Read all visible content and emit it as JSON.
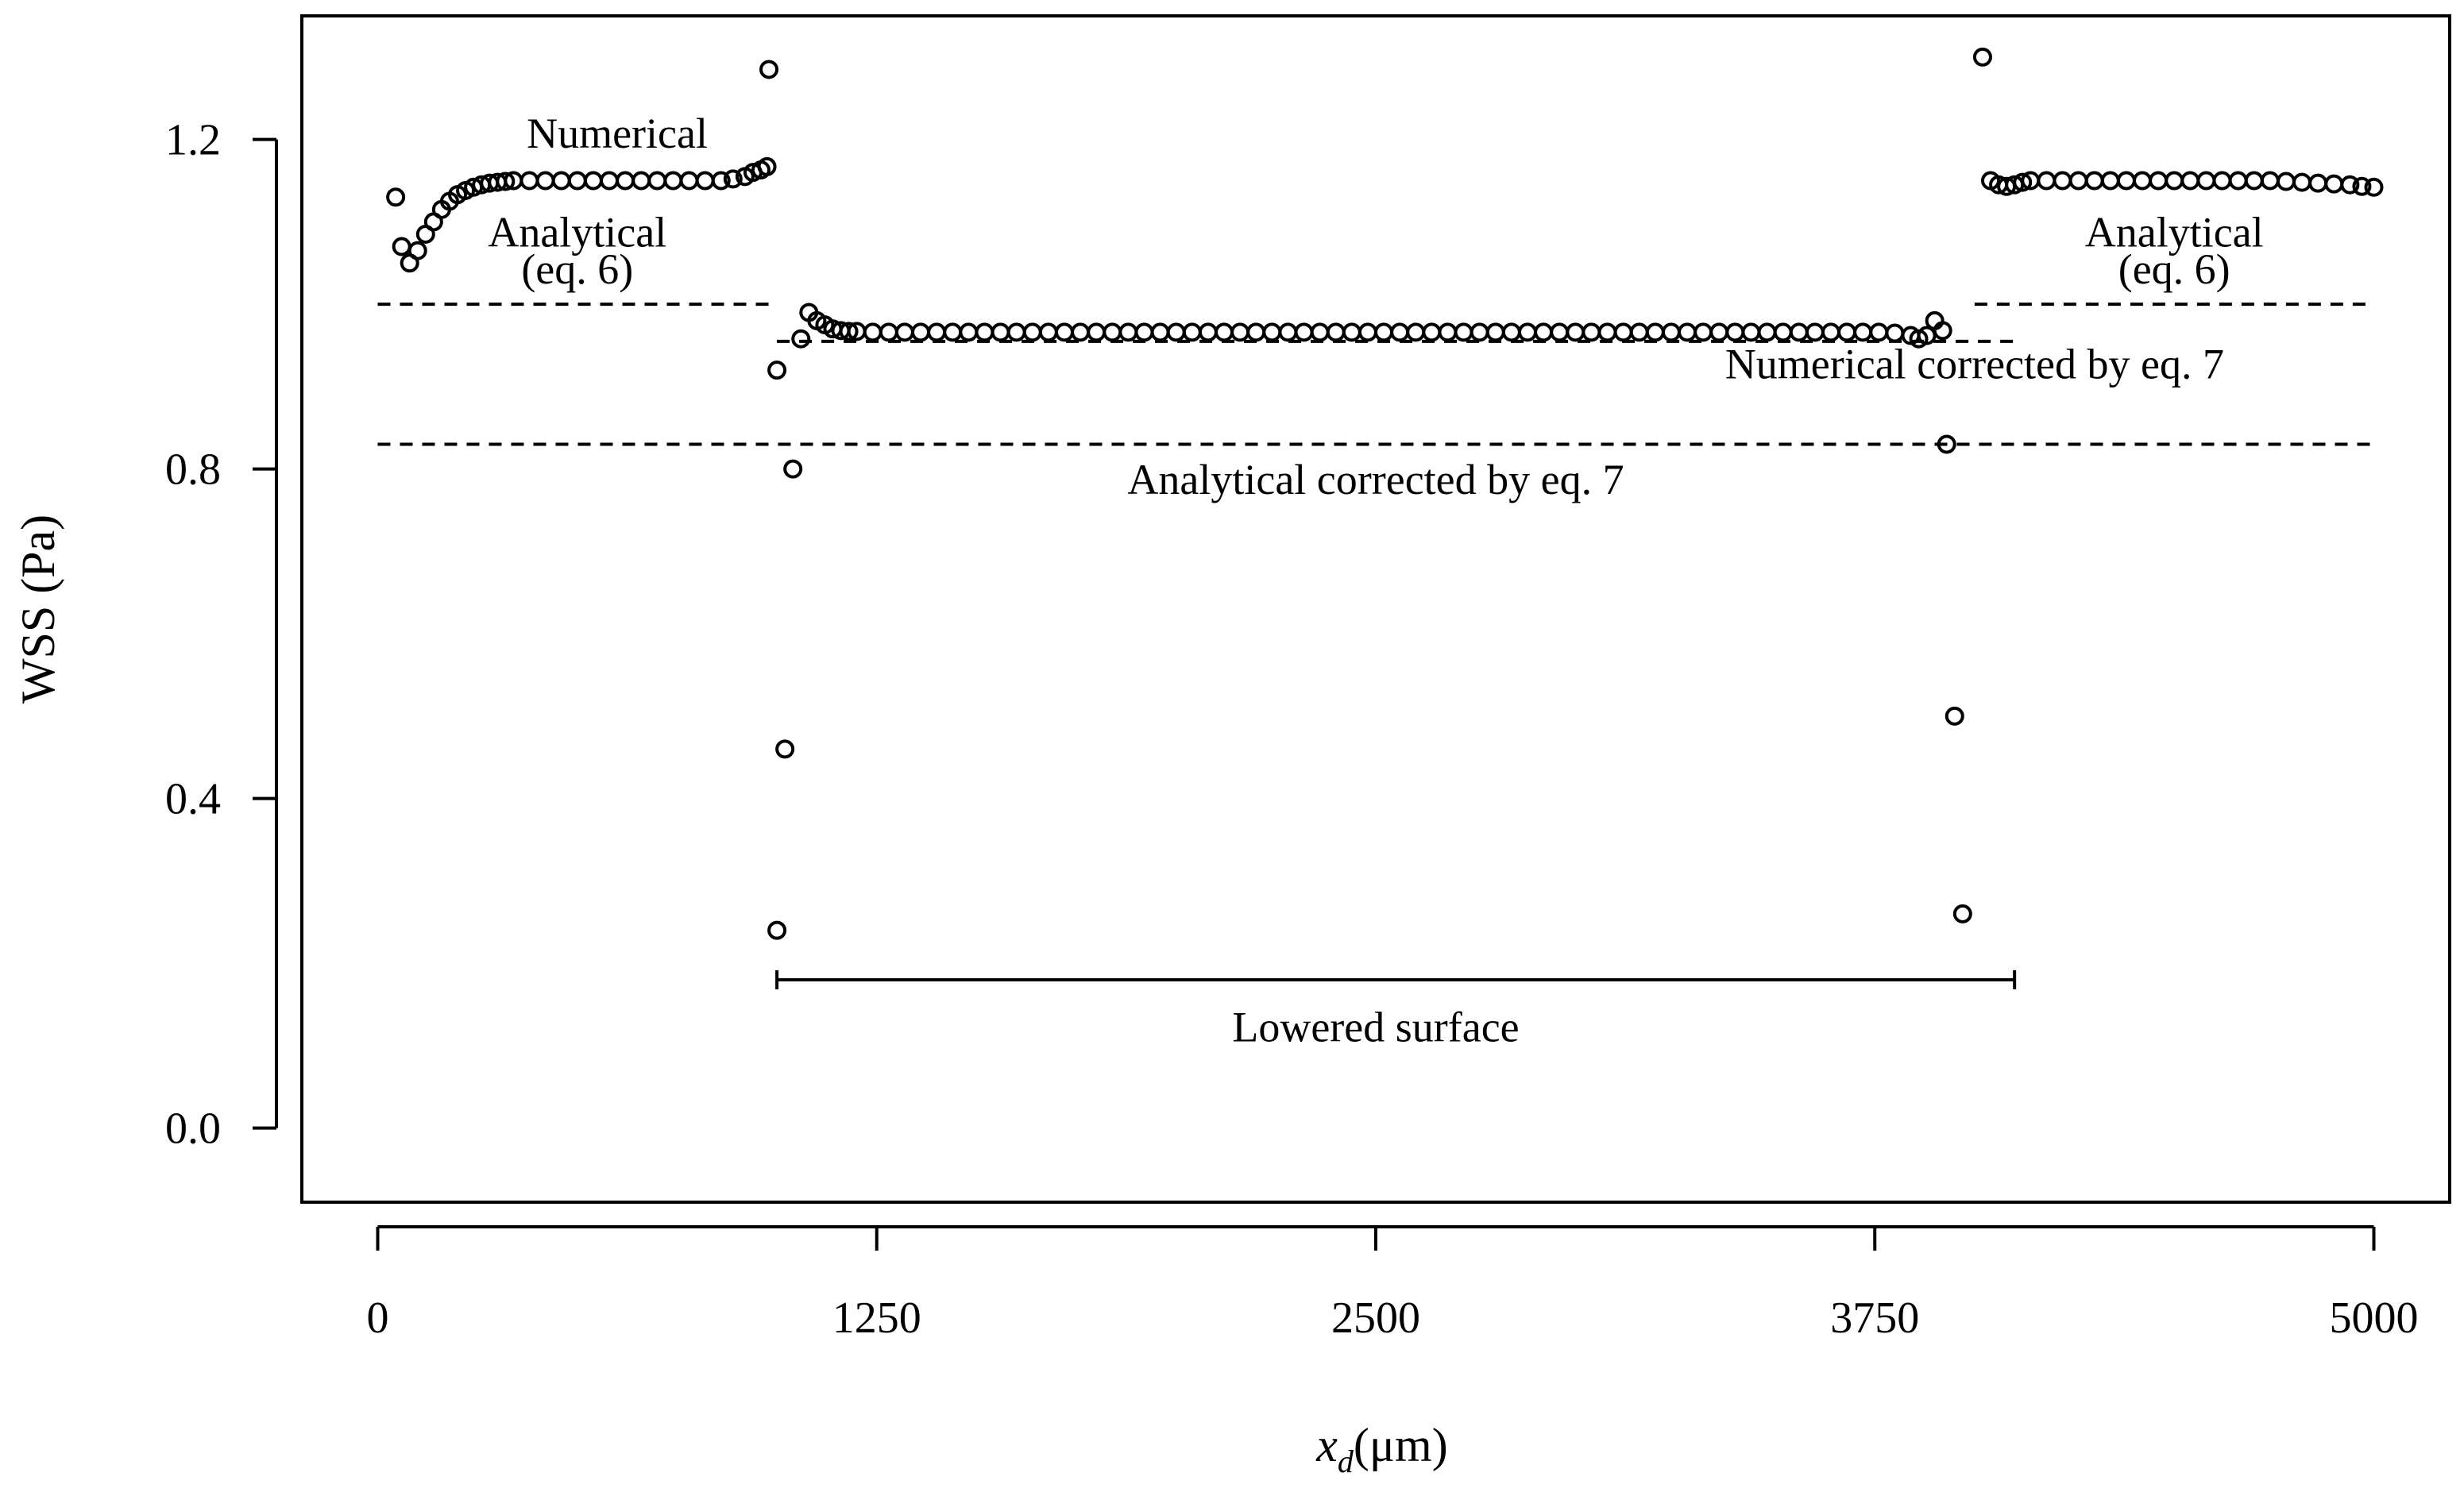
{
  "chart_data": {
    "type": "scatter",
    "title": "",
    "xlabel": {
      "var": "x",
      "sub": "d",
      "unit": "(μm)"
    },
    "ylabel": "WSS (Pa)",
    "xlim": [
      -190,
      5190
    ],
    "ylim": [
      -0.09,
      1.35
    ],
    "grid": false,
    "legend": "none",
    "x_ticks": [
      0,
      1250,
      2500,
      3750,
      5000
    ],
    "x_tick_labels": [
      "0",
      "1250",
      "2500",
      "3750",
      "5000"
    ],
    "y_ticks": [
      0.0,
      0.4,
      0.8,
      1.2
    ],
    "y_tick_labels": [
      "0.0",
      "0.4",
      "0.8",
      "1.2"
    ],
    "series": [
      {
        "marker": "open-circle",
        "points": [
          [
            45,
            1.13
          ],
          [
            60,
            1.07
          ],
          [
            80,
            1.05
          ],
          [
            100,
            1.065
          ],
          [
            120,
            1.085
          ],
          [
            140,
            1.1
          ],
          [
            160,
            1.115
          ],
          [
            180,
            1.125
          ],
          [
            200,
            1.133
          ],
          [
            220,
            1.138
          ],
          [
            240,
            1.142
          ],
          [
            260,
            1.145
          ],
          [
            280,
            1.147
          ],
          [
            300,
            1.148
          ],
          [
            320,
            1.149
          ],
          [
            340,
            1.15
          ],
          [
            380,
            1.15
          ],
          [
            420,
            1.15
          ],
          [
            460,
            1.15
          ],
          [
            500,
            1.15
          ],
          [
            540,
            1.15
          ],
          [
            580,
            1.15
          ],
          [
            620,
            1.15
          ],
          [
            660,
            1.15
          ],
          [
            700,
            1.15
          ],
          [
            740,
            1.15
          ],
          [
            780,
            1.15
          ],
          [
            820,
            1.15
          ],
          [
            860,
            1.15
          ],
          [
            890,
            1.152
          ],
          [
            920,
            1.155
          ],
          [
            940,
            1.16
          ],
          [
            960,
            1.163
          ],
          [
            975,
            1.167
          ],
          [
            980,
            1.285
          ],
          [
            1000,
            0.92
          ],
          [
            1000,
            0.24
          ],
          [
            1020,
            0.46
          ],
          [
            1040,
            0.8
          ],
          [
            1060,
            0.958
          ],
          [
            1080,
            0.99
          ],
          [
            1100,
            0.98
          ],
          [
            1120,
            0.975
          ],
          [
            1140,
            0.97
          ],
          [
            1160,
            0.968
          ],
          [
            1180,
            0.967
          ],
          [
            1200,
            0.967
          ],
          [
            1240,
            0.966
          ],
          [
            1280,
            0.966
          ],
          [
            1320,
            0.966
          ],
          [
            1360,
            0.966
          ],
          [
            1400,
            0.966
          ],
          [
            1440,
            0.966
          ],
          [
            1480,
            0.966
          ],
          [
            1520,
            0.966
          ],
          [
            1560,
            0.966
          ],
          [
            1600,
            0.966
          ],
          [
            1640,
            0.966
          ],
          [
            1680,
            0.966
          ],
          [
            1720,
            0.966
          ],
          [
            1760,
            0.966
          ],
          [
            1800,
            0.966
          ],
          [
            1840,
            0.966
          ],
          [
            1880,
            0.966
          ],
          [
            1920,
            0.966
          ],
          [
            1960,
            0.966
          ],
          [
            2000,
            0.966
          ],
          [
            2040,
            0.966
          ],
          [
            2080,
            0.966
          ],
          [
            2120,
            0.966
          ],
          [
            2160,
            0.966
          ],
          [
            2200,
            0.966
          ],
          [
            2240,
            0.966
          ],
          [
            2280,
            0.966
          ],
          [
            2320,
            0.966
          ],
          [
            2360,
            0.966
          ],
          [
            2400,
            0.966
          ],
          [
            2440,
            0.966
          ],
          [
            2480,
            0.966
          ],
          [
            2520,
            0.966
          ],
          [
            2560,
            0.966
          ],
          [
            2600,
            0.966
          ],
          [
            2640,
            0.966
          ],
          [
            2680,
            0.966
          ],
          [
            2720,
            0.966
          ],
          [
            2760,
            0.966
          ],
          [
            2800,
            0.966
          ],
          [
            2840,
            0.966
          ],
          [
            2880,
            0.966
          ],
          [
            2920,
            0.966
          ],
          [
            2960,
            0.966
          ],
          [
            3000,
            0.966
          ],
          [
            3040,
            0.966
          ],
          [
            3080,
            0.966
          ],
          [
            3120,
            0.966
          ],
          [
            3160,
            0.966
          ],
          [
            3200,
            0.966
          ],
          [
            3240,
            0.966
          ],
          [
            3280,
            0.966
          ],
          [
            3320,
            0.966
          ],
          [
            3360,
            0.966
          ],
          [
            3400,
            0.966
          ],
          [
            3440,
            0.966
          ],
          [
            3480,
            0.966
          ],
          [
            3520,
            0.966
          ],
          [
            3560,
            0.966
          ],
          [
            3600,
            0.966
          ],
          [
            3640,
            0.966
          ],
          [
            3680,
            0.966
          ],
          [
            3720,
            0.966
          ],
          [
            3760,
            0.966
          ],
          [
            3800,
            0.965
          ],
          [
            3840,
            0.962
          ],
          [
            3860,
            0.958
          ],
          [
            3880,
            0.962
          ],
          [
            3900,
            0.98
          ],
          [
            3920,
            0.968
          ],
          [
            3930,
            0.83
          ],
          [
            3950,
            0.5
          ],
          [
            3970,
            0.26
          ],
          [
            4020,
            1.3
          ],
          [
            4040,
            1.15
          ],
          [
            4060,
            1.145
          ],
          [
            4080,
            1.143
          ],
          [
            4100,
            1.145
          ],
          [
            4120,
            1.148
          ],
          [
            4140,
            1.15
          ],
          [
            4180,
            1.15
          ],
          [
            4220,
            1.15
          ],
          [
            4260,
            1.15
          ],
          [
            4300,
            1.15
          ],
          [
            4340,
            1.15
          ],
          [
            4380,
            1.15
          ],
          [
            4420,
            1.15
          ],
          [
            4460,
            1.15
          ],
          [
            4500,
            1.15
          ],
          [
            4540,
            1.15
          ],
          [
            4580,
            1.15
          ],
          [
            4620,
            1.15
          ],
          [
            4660,
            1.15
          ],
          [
            4700,
            1.15
          ],
          [
            4740,
            1.15
          ],
          [
            4780,
            1.149
          ],
          [
            4820,
            1.148
          ],
          [
            4860,
            1.147
          ],
          [
            4900,
            1.146
          ],
          [
            4940,
            1.145
          ],
          [
            4970,
            1.143
          ],
          [
            5000,
            1.142
          ]
        ]
      }
    ],
    "reference_lines": [
      {
        "y": 1.0,
        "x_from": 0,
        "x_to": 980,
        "style": "dashed"
      },
      {
        "y": 1.0,
        "x_from": 4000,
        "x_to": 5000,
        "style": "dashed"
      },
      {
        "y": 0.955,
        "x_from": 1000,
        "x_to": 4100,
        "style": "dashed"
      },
      {
        "y": 0.83,
        "x_from": 0,
        "x_to": 5000,
        "style": "dashed"
      }
    ],
    "range_marker": {
      "x_from": 1000,
      "x_to": 4100,
      "y": 0.18
    },
    "annotations": [
      {
        "text": "Numerical",
        "x": 600,
        "y": 1.19
      },
      {
        "text": "Analytical",
        "x": 500,
        "y": 1.07
      },
      {
        "text": "(eq. 6)",
        "x": 500,
        "y": 1.025
      },
      {
        "text": "Analytical",
        "x": 4500,
        "y": 1.07
      },
      {
        "text": "(eq. 6)",
        "x": 4500,
        "y": 1.025
      },
      {
        "text": "Numerical corrected by eq. 7",
        "x": 4000,
        "y": 0.91
      },
      {
        "text": "Analytical corrected by eq. 7",
        "x": 2500,
        "y": 0.77
      },
      {
        "text": "Lowered surface",
        "x": 2500,
        "y": 0.105
      }
    ]
  }
}
